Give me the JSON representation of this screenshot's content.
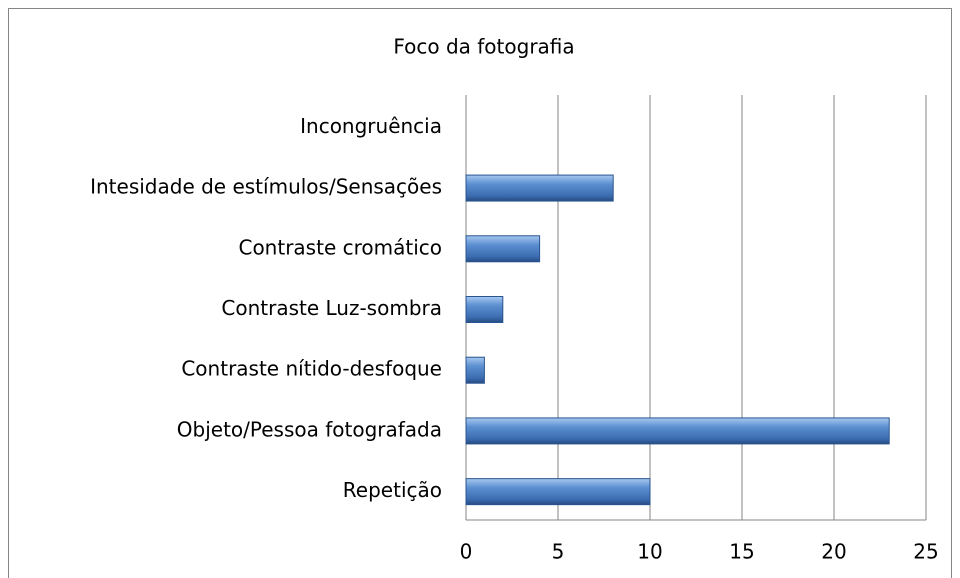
{
  "chart_data": {
    "type": "bar",
    "orientation": "horizontal",
    "title": "Foco da fotografia",
    "categories": [
      "Incongruência",
      "Intesidade de estímulos/Sensações",
      "Contraste cromático",
      "Contraste Luz-sombra",
      "Contraste nítido-desfoque",
      "Objeto/Pessoa fotografada",
      "Repetição"
    ],
    "values": [
      0,
      8,
      4,
      2,
      1,
      23,
      10
    ],
    "color": "#4f81bd",
    "xlim": [
      0,
      25
    ],
    "xticks": [
      0,
      5,
      10,
      15,
      20,
      25
    ],
    "grid": true
  }
}
